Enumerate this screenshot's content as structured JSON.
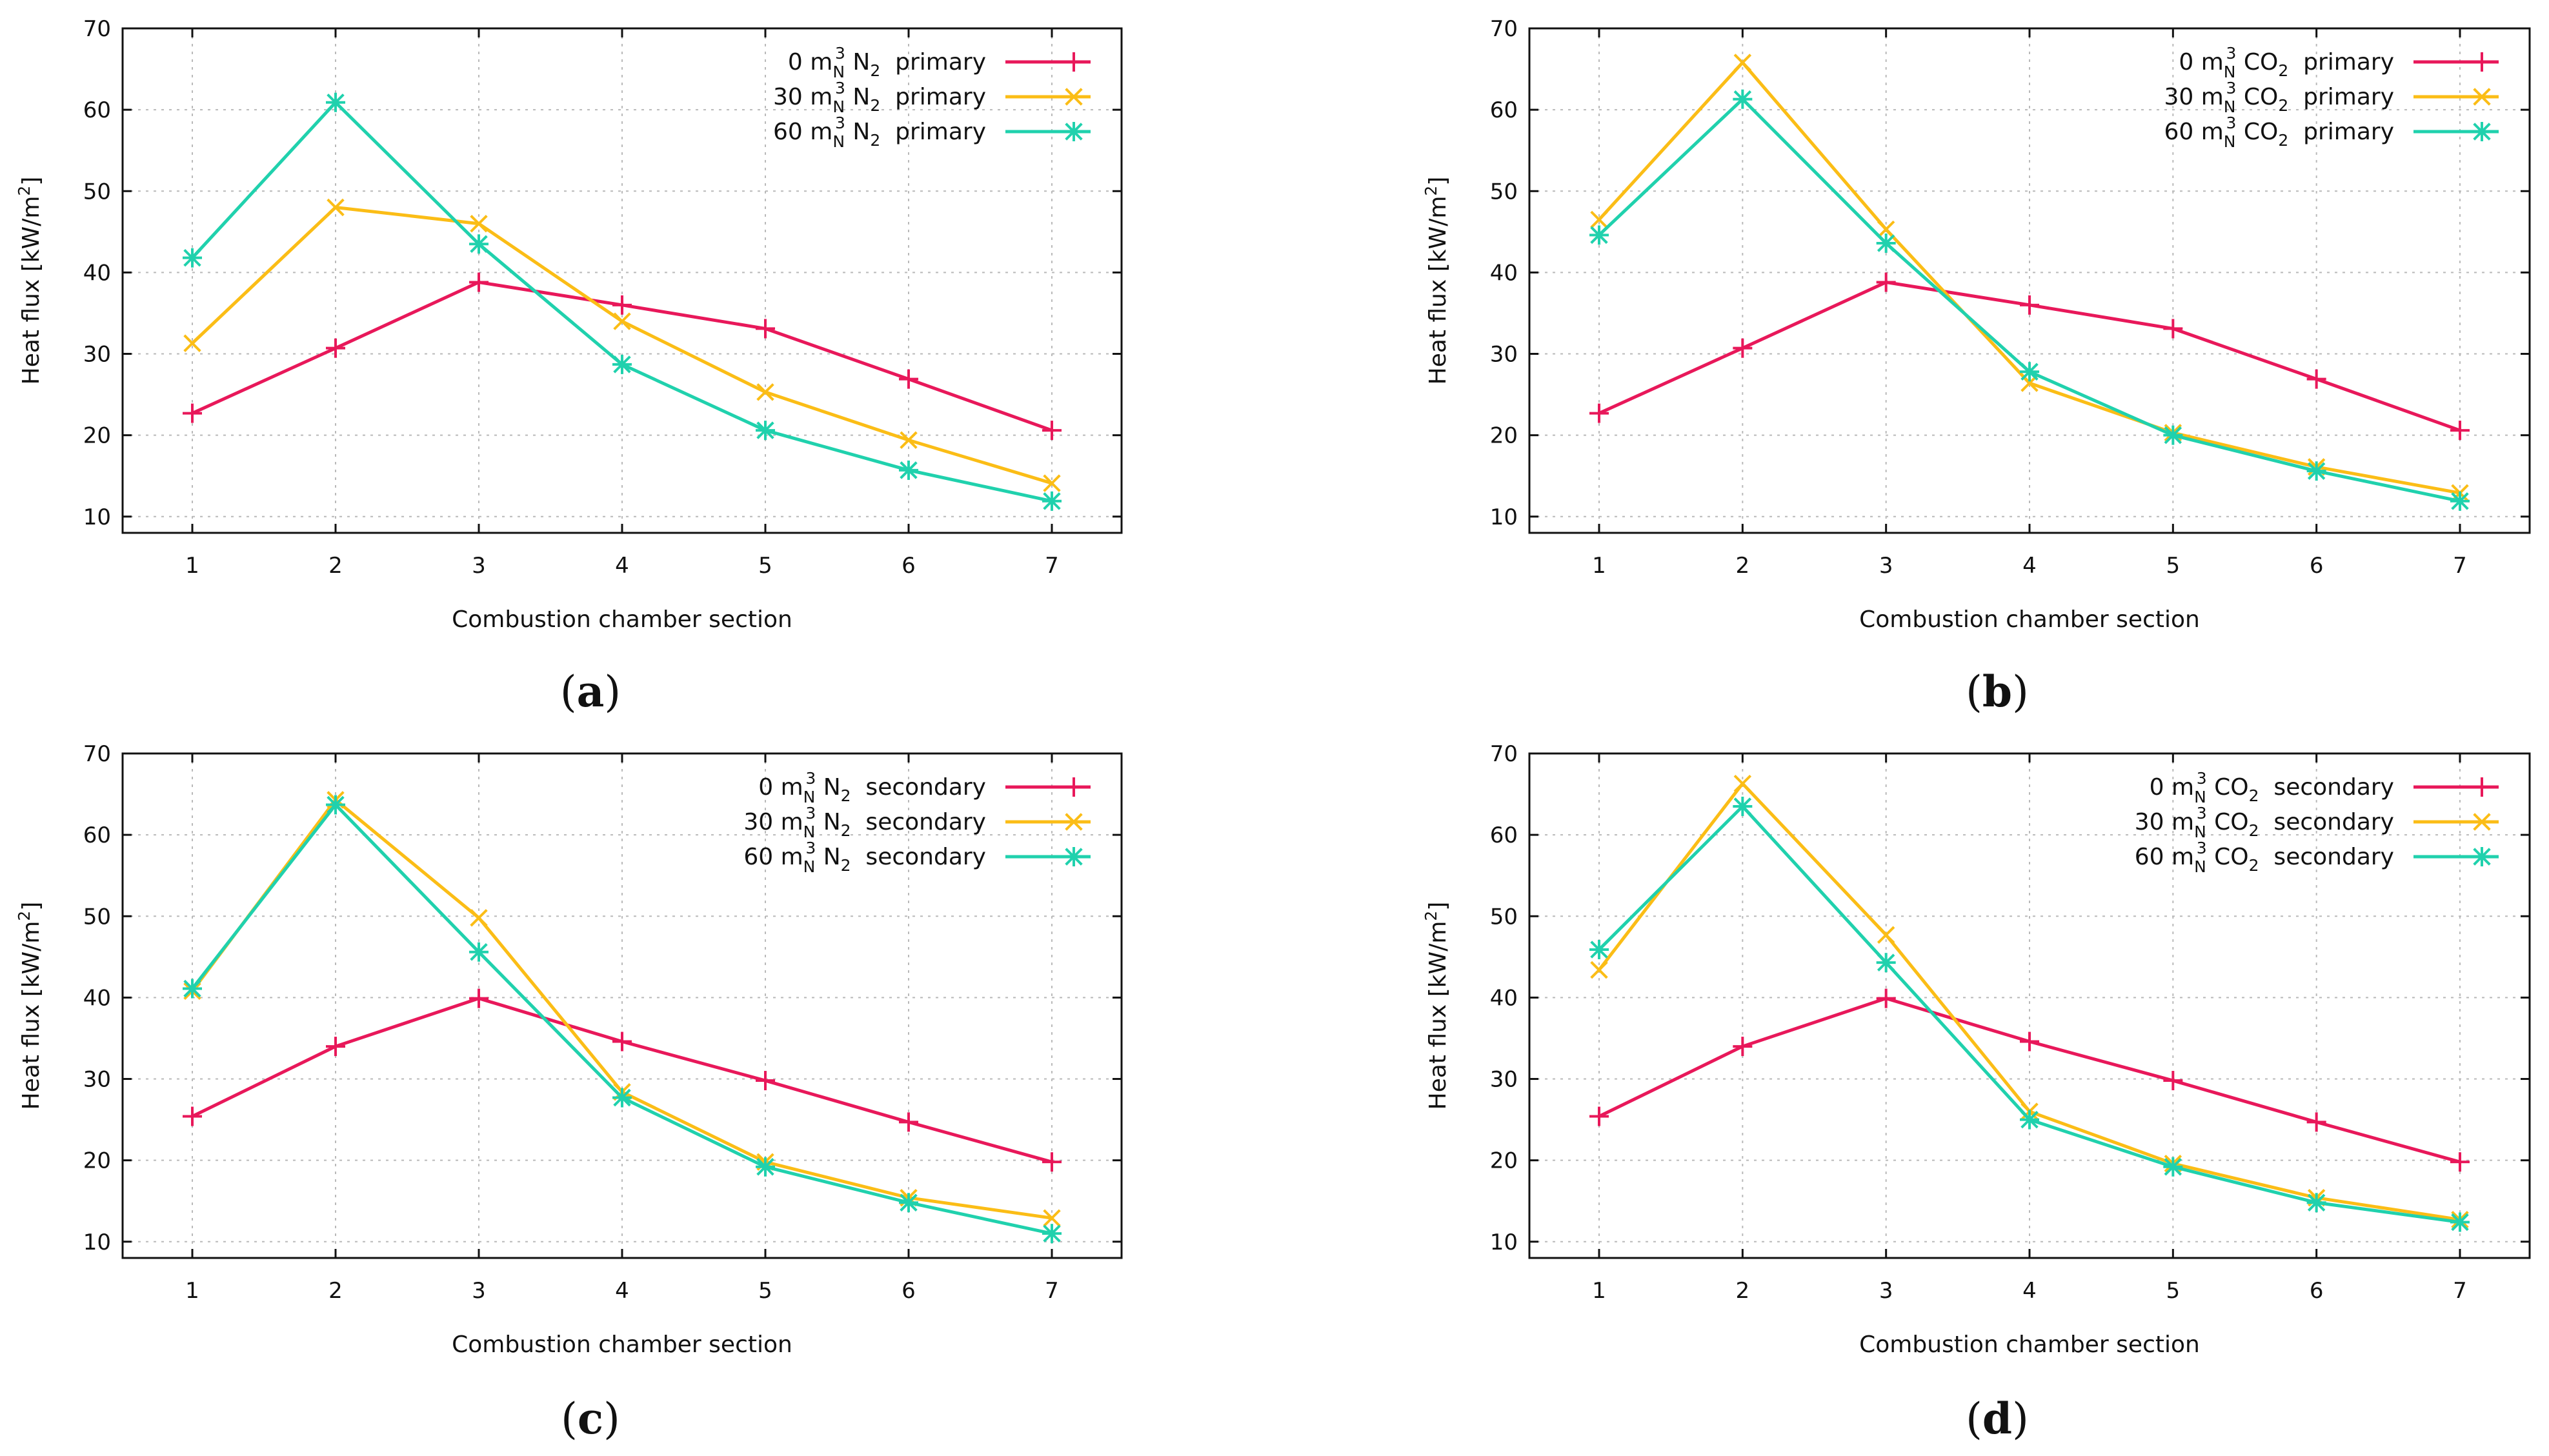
{
  "colors": {
    "s0": "#e8185a",
    "s30": "#fbbd16",
    "s60": "#20d1ad"
  },
  "chart_data": [
    {
      "id": "a",
      "type": "line",
      "caption_letter": "a",
      "xlabel": "Combustion chamber section",
      "ylabel": "Heat flux [kW/m2]",
      "ylim": [
        8,
        70
      ],
      "yticks": [
        "10",
        "20",
        "30",
        "40",
        "50",
        "60",
        "70"
      ],
      "categories": [
        "1",
        "2",
        "3",
        "4",
        "5",
        "6",
        "7"
      ],
      "series": [
        {
          "value_label": "0",
          "gas": "N2",
          "mode": "primary",
          "values": [
            22.7,
            30.7,
            38.8,
            36.0,
            33.1,
            26.9,
            20.6
          ]
        },
        {
          "value_label": "30",
          "gas": "N2",
          "mode": "primary",
          "values": [
            31.3,
            48.0,
            46.0,
            34.0,
            25.3,
            19.4,
            14.1
          ]
        },
        {
          "value_label": "60",
          "gas": "N2",
          "mode": "primary",
          "values": [
            41.8,
            60.9,
            43.5,
            28.7,
            20.6,
            15.7,
            11.9
          ]
        }
      ]
    },
    {
      "id": "b",
      "type": "line",
      "caption_letter": "b",
      "xlabel": "Combustion chamber section",
      "ylabel": "Heat flux [kW/m2]",
      "ylim": [
        8,
        70
      ],
      "yticks": [
        "10",
        "20",
        "30",
        "40",
        "50",
        "60",
        "70"
      ],
      "categories": [
        "1",
        "2",
        "3",
        "4",
        "5",
        "6",
        "7"
      ],
      "series": [
        {
          "value_label": "0",
          "gas": "CO2",
          "mode": "primary",
          "values": [
            22.7,
            30.7,
            38.8,
            36.0,
            33.1,
            26.9,
            20.6
          ]
        },
        {
          "value_label": "30",
          "gas": "CO2",
          "mode": "primary",
          "values": [
            46.5,
            65.8,
            45.3,
            26.4,
            20.3,
            16.1,
            12.9
          ]
        },
        {
          "value_label": "60",
          "gas": "CO2",
          "mode": "primary",
          "values": [
            44.6,
            61.3,
            43.6,
            27.8,
            20.0,
            15.6,
            11.9
          ]
        }
      ]
    },
    {
      "id": "c",
      "type": "line",
      "caption_letter": "c",
      "xlabel": "Combustion chamber section",
      "ylabel": "Heat flux [kW/m2]",
      "ylim": [
        8,
        70
      ],
      "yticks": [
        "10",
        "20",
        "30",
        "40",
        "50",
        "60",
        "70"
      ],
      "categories": [
        "1",
        "2",
        "3",
        "4",
        "5",
        "6",
        "7"
      ],
      "series": [
        {
          "value_label": "0",
          "gas": "N2",
          "mode": "secondary",
          "values": [
            25.4,
            34.0,
            39.9,
            34.6,
            29.8,
            24.7,
            19.8
          ]
        },
        {
          "value_label": "30",
          "gas": "N2",
          "mode": "secondary",
          "values": [
            40.8,
            64.3,
            49.8,
            28.4,
            19.8,
            15.4,
            12.9
          ]
        },
        {
          "value_label": "60",
          "gas": "N2",
          "mode": "secondary",
          "values": [
            41.1,
            63.7,
            45.6,
            27.7,
            19.2,
            14.8,
            11.0
          ]
        }
      ]
    },
    {
      "id": "d",
      "type": "line",
      "caption_letter": "d",
      "xlabel": "Combustion chamber section",
      "ylabel": "Heat flux [kW/m2]",
      "ylim": [
        8,
        70
      ],
      "yticks": [
        "10",
        "20",
        "30",
        "40",
        "50",
        "60",
        "70"
      ],
      "categories": [
        "1",
        "2",
        "3",
        "4",
        "5",
        "6",
        "7"
      ],
      "series": [
        {
          "value_label": "0",
          "gas": "CO2",
          "mode": "secondary",
          "values": [
            25.4,
            34.0,
            39.9,
            34.6,
            29.8,
            24.7,
            19.8
          ]
        },
        {
          "value_label": "30",
          "gas": "CO2",
          "mode": "secondary",
          "values": [
            43.4,
            66.3,
            47.7,
            26.0,
            19.6,
            15.4,
            12.7
          ]
        },
        {
          "value_label": "60",
          "gas": "CO2",
          "mode": "secondary",
          "values": [
            45.9,
            63.5,
            44.3,
            25.0,
            19.2,
            14.8,
            12.4
          ]
        }
      ]
    }
  ]
}
